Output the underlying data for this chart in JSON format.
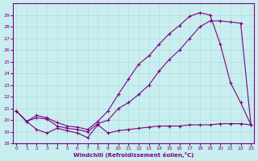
{
  "xlabel": "Windchill (Refroidissement éolien,°C)",
  "background_color": "#c8eef0",
  "line_color": "#800080",
  "ylim": [
    18,
    30
  ],
  "xlim": [
    -0.3,
    23.3
  ],
  "yticks": [
    18,
    19,
    20,
    21,
    22,
    23,
    24,
    25,
    26,
    27,
    28,
    29
  ],
  "xticks": [
    0,
    1,
    2,
    3,
    4,
    5,
    6,
    7,
    8,
    9,
    10,
    11,
    12,
    13,
    14,
    15,
    16,
    17,
    18,
    19,
    20,
    21,
    22,
    23
  ],
  "line1_x": [
    0,
    1,
    2,
    3,
    4,
    5,
    6,
    7,
    8,
    9,
    10,
    11,
    12,
    13,
    14,
    15,
    16,
    17,
    18,
    19,
    20,
    21,
    22,
    23
  ],
  "line1_y": [
    20.8,
    19.9,
    19.2,
    18.9,
    19.3,
    19.1,
    18.9,
    18.5,
    19.6,
    18.9,
    19.1,
    19.2,
    19.3,
    19.4,
    19.5,
    19.5,
    19.5,
    19.6,
    19.6,
    19.6,
    19.7,
    19.7,
    19.7,
    19.6
  ],
  "line2_x": [
    0,
    1,
    2,
    3,
    4,
    5,
    6,
    7,
    8,
    9,
    10,
    11,
    12,
    13,
    14,
    15,
    16,
    17,
    18,
    19,
    20,
    21,
    22,
    23
  ],
  "line2_y": [
    20.8,
    19.9,
    20.2,
    20.1,
    19.5,
    19.3,
    19.2,
    19.0,
    19.7,
    20.0,
    21.0,
    21.5,
    22.2,
    23.0,
    24.2,
    25.2,
    26.0,
    27.0,
    28.0,
    28.5,
    28.5,
    28.4,
    28.3,
    19.6
  ],
  "line3_x": [
    0,
    1,
    2,
    3,
    4,
    5,
    6,
    7,
    8,
    9,
    10,
    11,
    12,
    13,
    14,
    15,
    16,
    17,
    18,
    19,
    20,
    21,
    22,
    23
  ],
  "line3_y": [
    20.8,
    19.9,
    20.4,
    20.2,
    19.8,
    19.5,
    19.4,
    19.2,
    19.9,
    20.8,
    22.2,
    23.5,
    24.8,
    25.5,
    26.5,
    27.4,
    28.1,
    28.9,
    29.2,
    29.0,
    26.5,
    23.2,
    21.5,
    19.6
  ]
}
